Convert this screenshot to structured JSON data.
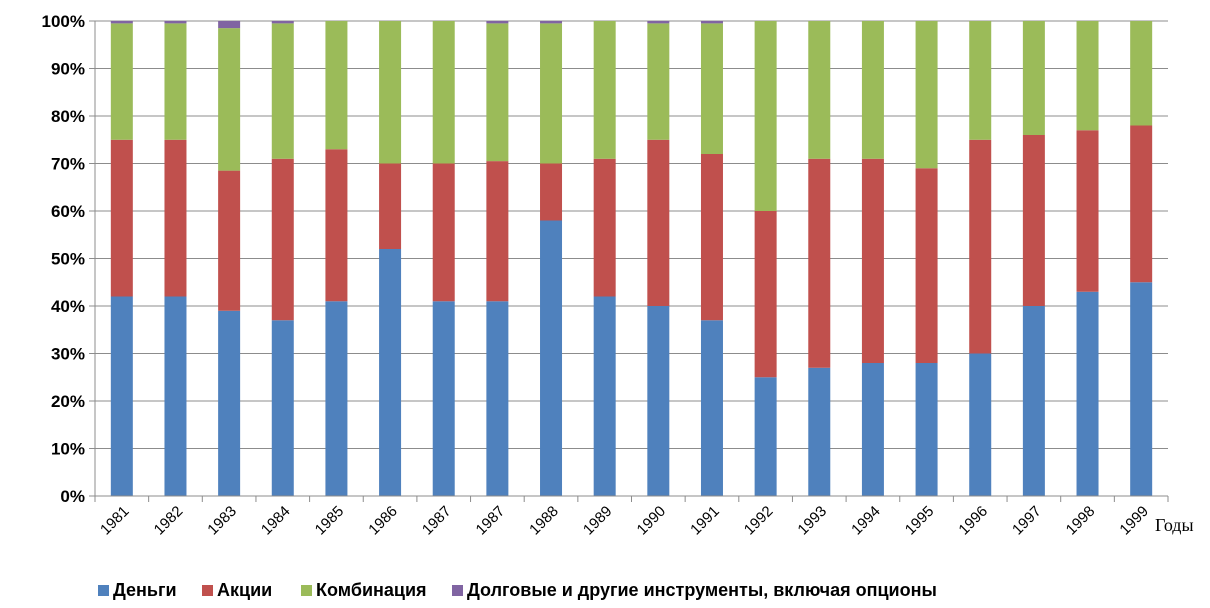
{
  "chart_data": {
    "type": "bar",
    "stacked": true,
    "categories": [
      "1981",
      "1982",
      "1983",
      "1984",
      "1985",
      "1986",
      "1987",
      "1987",
      "1988",
      "1989",
      "1990",
      "1991",
      "1992",
      "1993",
      "1994",
      "1995",
      "1996",
      "1997",
      "1998",
      "1999"
    ],
    "x_unit_label": "Годы",
    "ylim": [
      0,
      100
    ],
    "yticks": [
      "0%",
      "10%",
      "20%",
      "30%",
      "40%",
      "50%",
      "60%",
      "70%",
      "80%",
      "90%",
      "100%"
    ],
    "grid": true,
    "legend_position": "bottom",
    "series": [
      {
        "name": "Деньги",
        "color": "#4F81BD",
        "values": [
          42,
          42,
          39,
          37,
          41,
          52,
          41,
          41,
          58,
          42,
          40,
          37,
          25,
          27,
          28,
          28,
          30,
          40,
          43,
          45
        ]
      },
      {
        "name": "Акции",
        "color": "#C0504D",
        "values": [
          33,
          33,
          29.5,
          34,
          32,
          18,
          29,
          29.5,
          12,
          29,
          35,
          35,
          35,
          44,
          43,
          41,
          45,
          36,
          34,
          33
        ]
      },
      {
        "name": "Комбинация",
        "color": "#9BBB59",
        "values": [
          24.5,
          24.5,
          30,
          28.5,
          27,
          30,
          30,
          29,
          29.5,
          29,
          24.5,
          27.5,
          40,
          29,
          29,
          31,
          25,
          24,
          23,
          22
        ]
      },
      {
        "name": "Долговые и другие инструменты, включая опционы",
        "color": "#8064A2",
        "values": [
          0.5,
          0.5,
          1.5,
          0.5,
          0,
          0,
          0,
          0.5,
          0.5,
          0,
          0.5,
          0.5,
          0,
          0,
          0,
          0,
          0,
          0,
          0,
          0
        ]
      }
    ]
  }
}
